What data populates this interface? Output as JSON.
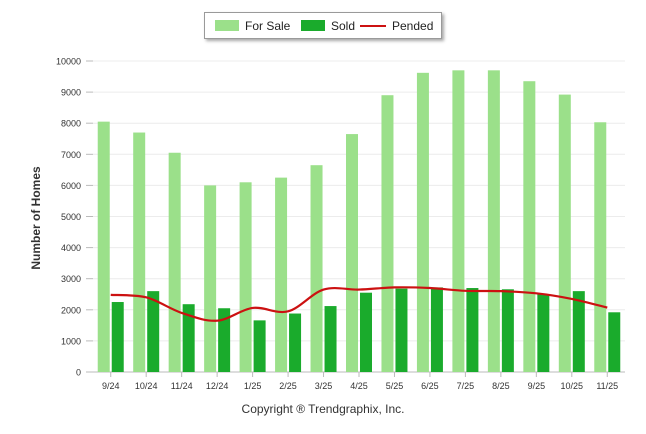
{
  "chart_data": {
    "type": "bar",
    "categories": [
      "9/24",
      "10/24",
      "11/24",
      "12/24",
      "1/25",
      "2/25",
      "3/25",
      "4/25",
      "5/25",
      "6/25",
      "7/25",
      "8/25",
      "9/25",
      "10/25",
      "11/25"
    ],
    "series": [
      {
        "name": "For Sale",
        "type": "bar",
        "color": "#9be08a",
        "values": [
          8050,
          7700,
          7050,
          6000,
          6100,
          6250,
          6650,
          7650,
          8900,
          9620,
          9700,
          9700,
          9350,
          8920,
          8030
        ]
      },
      {
        "name": "Sold",
        "type": "bar",
        "color": "#1aab2c",
        "values": [
          2250,
          2600,
          2180,
          2050,
          1660,
          1880,
          2120,
          2550,
          2680,
          2720,
          2700,
          2660,
          2500,
          2600,
          1920
        ]
      },
      {
        "name": "Pended",
        "type": "line",
        "color": "#cc1111",
        "values": [
          2480,
          2400,
          1900,
          1650,
          2060,
          1950,
          2650,
          2650,
          2720,
          2700,
          2610,
          2600,
          2530,
          2350,
          2070
        ]
      }
    ],
    "ylabel": "Number of Homes",
    "xlabel": "",
    "ylim": [
      0,
      10000
    ],
    "yticks": [
      "0",
      "1000",
      "2000",
      "3000",
      "4000",
      "5000",
      "6000",
      "7000",
      "8000",
      "9000",
      "10000"
    ],
    "legend_position": "top-center",
    "grid": true
  },
  "footer": {
    "copyright": "Copyright ® Trendgraphix, Inc."
  }
}
